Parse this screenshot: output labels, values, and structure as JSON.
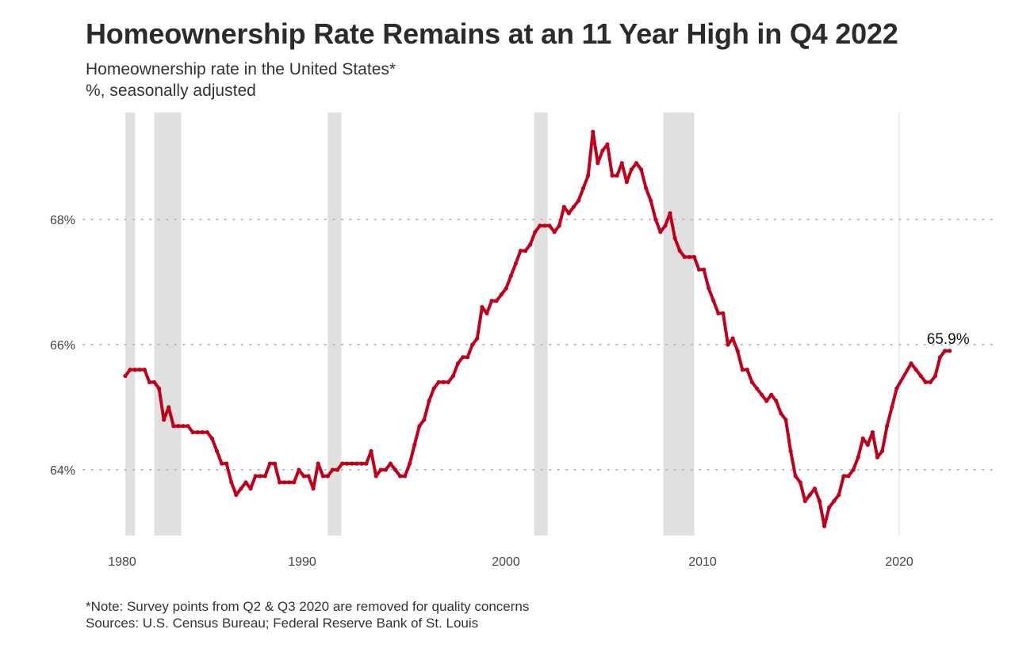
{
  "title": "Homeownership Rate Remains at an 11 Year High in Q4 2022",
  "subtitle": "Homeownership rate in the United States*",
  "subtitle2": "%, seasonally adjusted",
  "note": "*Note: Survey points from Q2 & Q3 2020 are removed for quality concerns",
  "sources": "Sources: U.S. Census Bureau; Federal Reserve Bank of St. Louis",
  "chart_data": {
    "type": "line",
    "title": "Homeownership Rate Remains at an 11 Year High in Q4 2022",
    "frequency": "quarterly",
    "start": "1980 Q1",
    "end": "2022 Q4",
    "xlabel": "",
    "ylabel": "",
    "x_ticks": [
      "1980",
      "1990",
      "2000",
      "2010",
      "2020"
    ],
    "y_ticks": [
      {
        "value": 64,
        "label": "64%"
      },
      {
        "value": 66,
        "label": "66%"
      },
      {
        "value": 68,
        "label": "68%"
      }
    ],
    "ylim": [
      62.9,
      69.6
    ],
    "grid": "horizontal dotted",
    "line_color": "#c0001a",
    "recession_color": "#e0e0e0",
    "recessions": [
      [
        1980.0,
        1980.5
      ],
      [
        1981.5,
        1982.9
      ],
      [
        1990.5,
        1991.2
      ],
      [
        2001.2,
        2001.9
      ],
      [
        2007.9,
        2009.5
      ]
    ],
    "annotation": {
      "label": "65.9%",
      "year": 2022.75,
      "value": 65.9
    },
    "values": [
      65.5,
      65.6,
      65.6,
      65.6,
      65.6,
      65.4,
      65.4,
      65.3,
      64.8,
      65.0,
      64.7,
      64.7,
      64.7,
      64.7,
      64.6,
      64.6,
      64.6,
      64.6,
      64.5,
      64.3,
      64.1,
      64.1,
      63.8,
      63.6,
      63.7,
      63.8,
      63.7,
      63.9,
      63.9,
      63.9,
      64.1,
      64.1,
      63.8,
      63.8,
      63.8,
      63.8,
      64.0,
      63.9,
      63.9,
      63.7,
      64.1,
      63.9,
      63.9,
      64.0,
      64.0,
      64.1,
      64.1,
      64.1,
      64.1,
      64.1,
      64.1,
      64.3,
      63.9,
      64.0,
      64.0,
      64.1,
      64.0,
      63.9,
      63.9,
      64.1,
      64.4,
      64.7,
      64.8,
      65.1,
      65.3,
      65.4,
      65.4,
      65.4,
      65.5,
      65.7,
      65.8,
      65.8,
      66.0,
      66.1,
      66.6,
      66.5,
      66.7,
      66.7,
      66.8,
      66.9,
      67.1,
      67.3,
      67.5,
      67.5,
      67.6,
      67.8,
      67.9,
      67.9,
      67.9,
      67.8,
      67.9,
      68.2,
      68.1,
      68.2,
      68.3,
      68.5,
      68.7,
      69.4,
      68.9,
      69.1,
      69.2,
      68.7,
      68.7,
      68.9,
      68.6,
      68.8,
      68.9,
      68.8,
      68.5,
      68.3,
      68.0,
      67.8,
      67.9,
      68.1,
      67.7,
      67.5,
      67.4,
      67.4,
      67.4,
      67.2,
      67.2,
      66.9,
      66.7,
      66.5,
      66.5,
      66.0,
      66.1,
      65.9,
      65.6,
      65.6,
      65.4,
      65.3,
      65.2,
      65.1,
      65.2,
      65.1,
      64.9,
      64.8,
      64.3,
      63.9,
      63.8,
      63.5,
      63.6,
      63.7,
      63.5,
      63.1,
      63.4,
      63.5,
      63.6,
      63.9,
      63.9,
      64.0,
      64.2,
      64.5,
      64.4,
      64.6,
      64.2,
      64.3,
      64.7,
      65.0,
      65.3,
      null,
      null,
      65.7,
      65.6,
      65.5,
      65.4,
      65.4,
      65.5,
      65.8,
      65.9,
      65.9
    ]
  }
}
